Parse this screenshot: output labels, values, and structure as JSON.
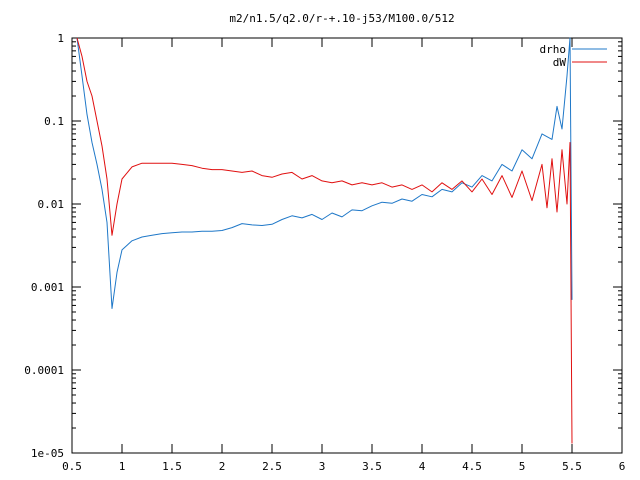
{
  "chart_data": {
    "type": "line",
    "title": "m2/n1.5/q2.0/r-+.10-j53/M100.0/512",
    "xlabel": "",
    "ylabel": "",
    "xlim": [
      0.5,
      6
    ],
    "ylim": [
      1e-05,
      1
    ],
    "y_scale": "log",
    "grid": false,
    "legend_position": "top-right",
    "x_ticks": [
      "0.5",
      "1",
      "1.5",
      "2",
      "2.5",
      "3",
      "3.5",
      "4",
      "4.5",
      "5",
      "5.5",
      "6"
    ],
    "y_ticks": [
      "1e-05",
      "0.0001",
      "0.001",
      "0.01",
      "0.1",
      "1"
    ],
    "series": [
      {
        "name": "drho",
        "color": "#1f78c8",
        "x": [
          0.55,
          0.6,
          0.65,
          0.7,
          0.75,
          0.8,
          0.85,
          0.9,
          0.95,
          1.0,
          1.1,
          1.2,
          1.3,
          1.4,
          1.5,
          1.6,
          1.7,
          1.8,
          1.9,
          2.0,
          2.1,
          2.2,
          2.3,
          2.4,
          2.5,
          2.6,
          2.7,
          2.8,
          2.9,
          3.0,
          3.1,
          3.2,
          3.3,
          3.4,
          3.5,
          3.6,
          3.7,
          3.8,
          3.9,
          4.0,
          4.1,
          4.2,
          4.3,
          4.4,
          4.5,
          4.6,
          4.7,
          4.8,
          4.9,
          5.0,
          5.1,
          5.2,
          5.3,
          5.35,
          5.4,
          5.45,
          5.48,
          5.5
        ],
        "values": [
          1.0,
          0.35,
          0.12,
          0.055,
          0.03,
          0.015,
          0.006,
          0.00055,
          0.0015,
          0.0028,
          0.0036,
          0.004,
          0.0042,
          0.0044,
          0.0045,
          0.0046,
          0.0046,
          0.0047,
          0.0047,
          0.0048,
          0.0052,
          0.0058,
          0.0056,
          0.0055,
          0.0057,
          0.0065,
          0.0072,
          0.0068,
          0.0075,
          0.0065,
          0.0078,
          0.007,
          0.0085,
          0.0083,
          0.0095,
          0.0105,
          0.0102,
          0.0115,
          0.0108,
          0.013,
          0.0122,
          0.015,
          0.014,
          0.018,
          0.016,
          0.022,
          0.019,
          0.03,
          0.025,
          0.045,
          0.035,
          0.07,
          0.06,
          0.15,
          0.08,
          0.35,
          1.0,
          0.0007
        ]
      },
      {
        "name": "dW",
        "color": "#e01010",
        "x": [
          0.55,
          0.6,
          0.65,
          0.7,
          0.75,
          0.8,
          0.85,
          0.9,
          0.95,
          1.0,
          1.1,
          1.2,
          1.3,
          1.4,
          1.5,
          1.6,
          1.7,
          1.8,
          1.9,
          2.0,
          2.1,
          2.2,
          2.3,
          2.4,
          2.5,
          2.6,
          2.7,
          2.8,
          2.9,
          3.0,
          3.1,
          3.2,
          3.3,
          3.4,
          3.5,
          3.6,
          3.7,
          3.8,
          3.9,
          4.0,
          4.1,
          4.2,
          4.3,
          4.4,
          4.5,
          4.6,
          4.7,
          4.8,
          4.9,
          5.0,
          5.1,
          5.2,
          5.25,
          5.3,
          5.35,
          5.4,
          5.45,
          5.48,
          5.5
        ],
        "values": [
          1.0,
          0.6,
          0.3,
          0.2,
          0.1,
          0.05,
          0.02,
          0.0042,
          0.01,
          0.02,
          0.028,
          0.031,
          0.031,
          0.031,
          0.031,
          0.03,
          0.029,
          0.027,
          0.026,
          0.026,
          0.025,
          0.024,
          0.025,
          0.022,
          0.021,
          0.023,
          0.024,
          0.02,
          0.022,
          0.019,
          0.018,
          0.019,
          0.017,
          0.018,
          0.017,
          0.018,
          0.016,
          0.017,
          0.015,
          0.017,
          0.014,
          0.018,
          0.015,
          0.019,
          0.014,
          0.02,
          0.013,
          0.022,
          0.012,
          0.025,
          0.011,
          0.03,
          0.009,
          0.035,
          0.008,
          0.045,
          0.01,
          0.055,
          1.3e-05
        ]
      }
    ]
  }
}
